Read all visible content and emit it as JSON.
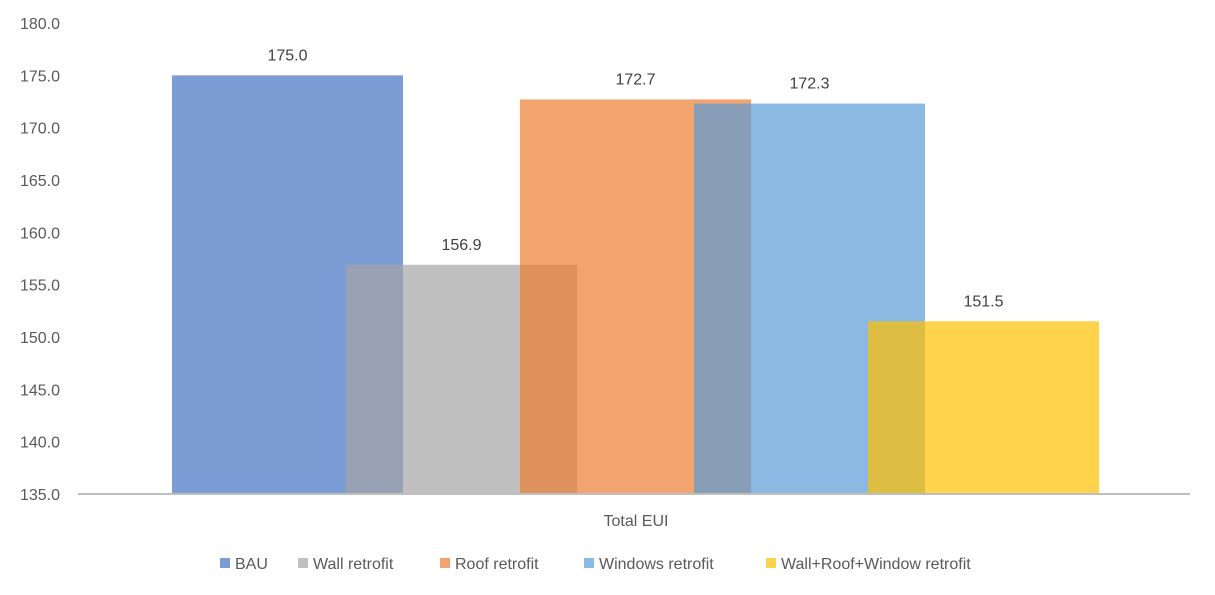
{
  "chart_data": {
    "type": "bar",
    "categories": [
      "Total EUI"
    ],
    "series": [
      {
        "name": "BAU",
        "values": [
          175.0
        ],
        "color": "#4472C4"
      },
      {
        "name": "Wall retrofit",
        "values": [
          156.9
        ],
        "color": "#A5A5A5"
      },
      {
        "name": "Roof retrofit",
        "values": [
          172.7
        ],
        "color": "#ED7D31"
      },
      {
        "name": "Windows retrofit",
        "values": [
          172.3
        ],
        "color": "#5B9BD5"
      },
      {
        "name": "Wall+Roof+Window retrofit",
        "values": [
          151.5
        ],
        "color": "#FFC000"
      }
    ],
    "data_labels": [
      "175.0",
      "156.9",
      "172.7",
      "172.3",
      "151.5"
    ],
    "y_ticks": [
      "135.0",
      "140.0",
      "145.0",
      "150.0",
      "155.0",
      "160.0",
      "165.0",
      "170.0",
      "175.0",
      "180.0"
    ],
    "ylim": [
      135,
      180
    ],
    "grid": false,
    "legend": "bottom",
    "bar_opacity": 0.7,
    "axis_color": "#BFBFBF"
  }
}
